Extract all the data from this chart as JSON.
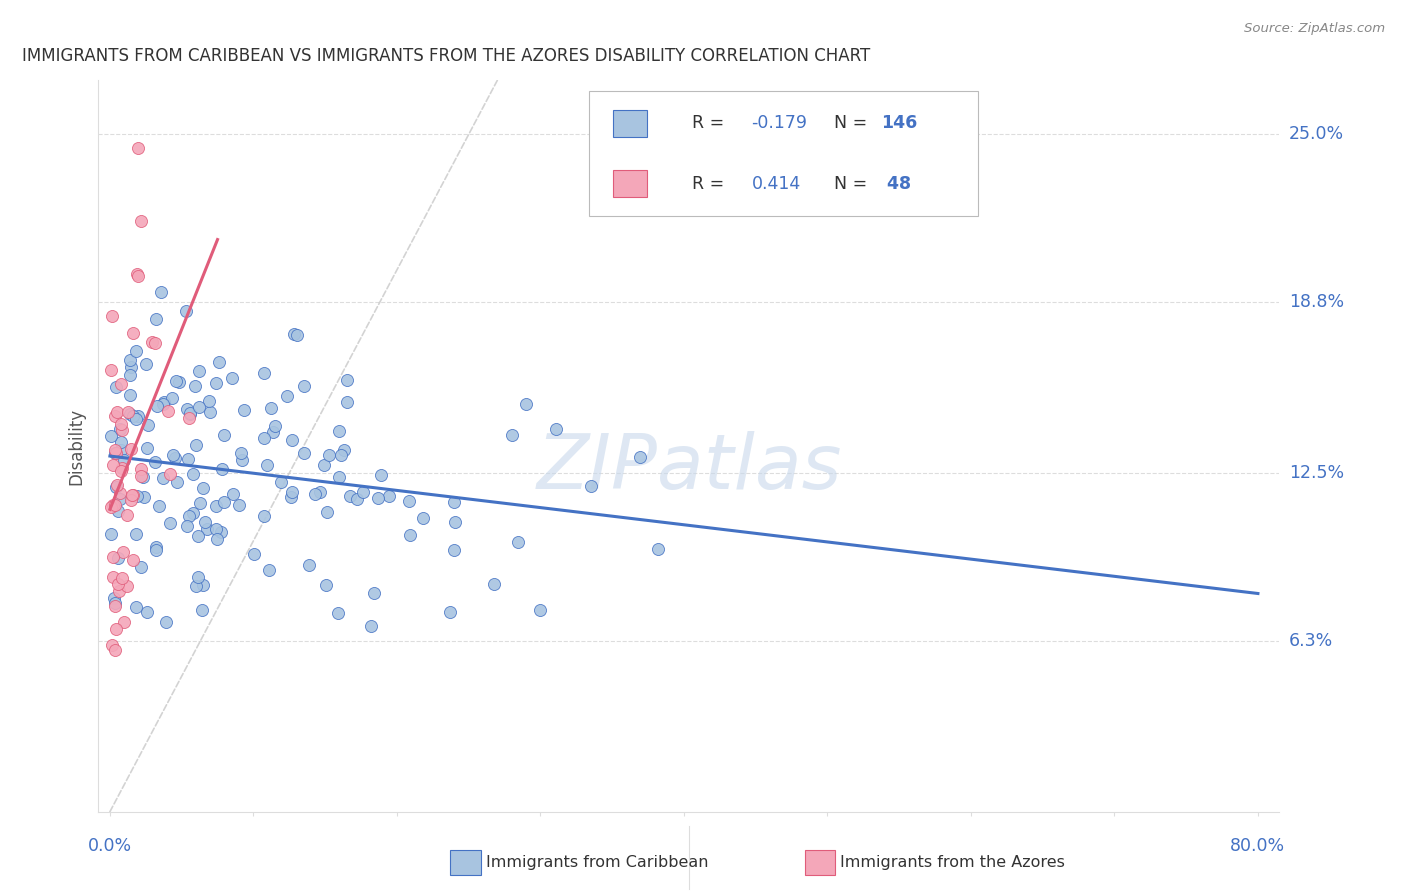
{
  "title": "IMMIGRANTS FROM CARIBBEAN VS IMMIGRANTS FROM THE AZORES DISABILITY CORRELATION CHART",
  "source": "Source: ZipAtlas.com",
  "ylabel": "Disability",
  "ytick_labels": [
    "6.3%",
    "12.5%",
    "18.8%",
    "25.0%"
  ],
  "ytick_values": [
    0.063,
    0.125,
    0.188,
    0.25
  ],
  "xlim": [
    0.0,
    0.8
  ],
  "ylim": [
    0.0,
    0.27
  ],
  "color_caribbean": "#a8c4e0",
  "color_azores": "#f4a7b9",
  "color_trendline_caribbean": "#4472c4",
  "color_trendline_azores": "#e05c7a",
  "color_trendline_diagonal": "#c8c8c8",
  "color_axis_labels": "#4472c4",
  "R_caribbean": -0.179,
  "R_azores": 0.414,
  "N_caribbean": 146,
  "N_azores": 48
}
